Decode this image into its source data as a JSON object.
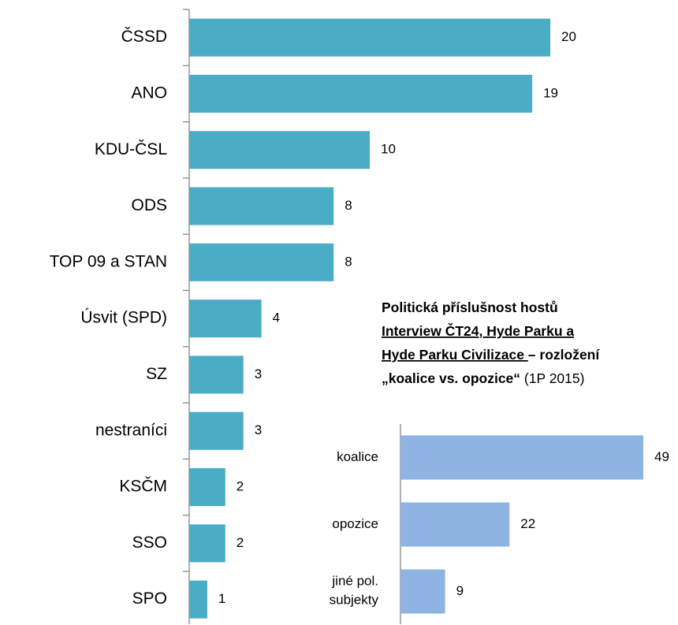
{
  "chart_data": [
    {
      "type": "barh",
      "categories": [
        "ČSSD",
        "ANO",
        "KDU-ČSL",
        "ODS",
        "TOP 09 a STAN",
        "Úsvit (SPD)",
        "SZ",
        "nestraníci",
        "KSČM",
        "SSO",
        "SPO"
      ],
      "values": [
        20,
        19,
        10,
        8,
        8,
        4,
        3,
        3,
        2,
        2,
        1
      ],
      "color": "#4bacc6",
      "xlim": [
        0,
        20
      ]
    },
    {
      "type": "barh",
      "title": [
        [
          "Politická příslušnost hostů"
        ],
        [
          "Interview ČT24, Hyde Parku a"
        ],
        [
          "Hyde Parku Civilizace ",
          "– rozložení"
        ],
        [
          "„koalice vs. opozice“",
          " (1P 2015)"
        ]
      ],
      "categories": [
        "koalice",
        "opozice",
        "jiné pol. subjekty"
      ],
      "values": [
        49,
        22,
        9
      ],
      "color": "#8eb4e3",
      "xlim": [
        0,
        49
      ]
    }
  ]
}
